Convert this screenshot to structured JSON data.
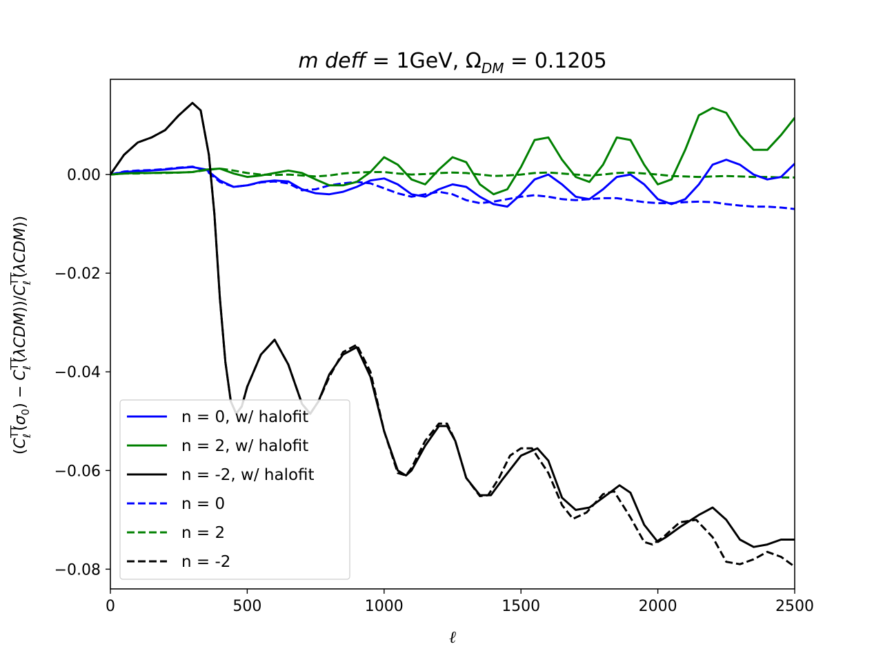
{
  "chart_data": {
    "type": "line",
    "title": "m deff = 1GeV, Ω_DM = 0.1205",
    "title_parts": {
      "lhs": "m deff",
      "value1": "1GeV,",
      "omega": "Ω",
      "omega_sub": "DM",
      "value2": "0.1205"
    },
    "xlabel": "ℓ",
    "ylabel": "(C_ℓ^TT(σ0) − C_ℓ^TT(λCDM))/C_ℓ^TT(λCDM))",
    "xlim": [
      0,
      2500
    ],
    "ylim": [
      -0.084,
      0.0193
    ],
    "xticks": [
      0,
      500,
      1000,
      1500,
      2000,
      2500
    ],
    "xtick_labels": [
      "0",
      "500",
      "1000",
      "1500",
      "2000",
      "2500"
    ],
    "yticks": [
      0.0,
      -0.02,
      -0.04,
      -0.06,
      -0.08
    ],
    "ytick_labels": [
      "0.00",
      "−0.02",
      "−0.04",
      "−0.06",
      "−0.08"
    ],
    "legend_position": "lower-left",
    "colors": {
      "blue": "#0000ff",
      "green": "#008000",
      "black": "#000000"
    },
    "series": [
      {
        "name": "n = 0, w/ halofit",
        "color": "#0000ff",
        "dash": "solid",
        "x": [
          0,
          50,
          100,
          150,
          200,
          250,
          300,
          350,
          400,
          450,
          500,
          550,
          600,
          650,
          700,
          750,
          800,
          850,
          900,
          950,
          1000,
          1050,
          1100,
          1150,
          1200,
          1250,
          1300,
          1350,
          1400,
          1450,
          1500,
          1550,
          1600,
          1650,
          1700,
          1750,
          1800,
          1850,
          1900,
          1950,
          2000,
          2050,
          2100,
          2150,
          2200,
          2250,
          2300,
          2350,
          2400,
          2450,
          2500
        ],
        "y": [
          0.0,
          0.0005,
          0.0007,
          0.0008,
          0.001,
          0.0013,
          0.0015,
          0.001,
          -0.0012,
          -0.0025,
          -0.0022,
          -0.0015,
          -0.0012,
          -0.0014,
          -0.003,
          -0.0038,
          -0.004,
          -0.0035,
          -0.0025,
          -0.0012,
          -0.0008,
          -0.002,
          -0.004,
          -0.0045,
          -0.003,
          -0.002,
          -0.0025,
          -0.0045,
          -0.006,
          -0.0065,
          -0.004,
          -0.001,
          0.0,
          -0.002,
          -0.0045,
          -0.005,
          -0.003,
          -0.0005,
          0.0,
          -0.002,
          -0.005,
          -0.006,
          -0.005,
          -0.002,
          0.002,
          0.003,
          0.002,
          0.0,
          -0.001,
          -0.0005,
          0.0022
        ]
      },
      {
        "name": "n = 2, w/ halofit",
        "color": "#008000",
        "dash": "solid",
        "x": [
          0,
          50,
          100,
          150,
          200,
          250,
          300,
          350,
          400,
          450,
          500,
          550,
          600,
          650,
          700,
          750,
          800,
          850,
          900,
          950,
          1000,
          1050,
          1100,
          1150,
          1200,
          1250,
          1300,
          1350,
          1400,
          1450,
          1500,
          1550,
          1600,
          1650,
          1700,
          1750,
          1800,
          1850,
          1900,
          1950,
          2000,
          2050,
          2100,
          2150,
          2200,
          2250,
          2300,
          2350,
          2400,
          2450,
          2500
        ],
        "y": [
          0.0,
          0.0002,
          0.0003,
          0.0003,
          0.0004,
          0.0004,
          0.0005,
          0.001,
          0.0012,
          0.0002,
          -0.0005,
          -0.0002,
          0.0003,
          0.0008,
          0.0003,
          -0.001,
          -0.0022,
          -0.0022,
          -0.0015,
          0.0005,
          0.0035,
          0.002,
          -0.001,
          -0.002,
          0.001,
          0.0035,
          0.0025,
          -0.002,
          -0.004,
          -0.003,
          0.0015,
          0.007,
          0.0075,
          0.003,
          -0.0005,
          -0.0015,
          0.002,
          0.0075,
          0.007,
          0.002,
          -0.002,
          -0.001,
          0.005,
          0.012,
          0.0135,
          0.0125,
          0.008,
          0.005,
          0.005,
          0.008,
          0.0115
        ]
      },
      {
        "name": "n = -2, w/ halofit",
        "color": "#000000",
        "dash": "solid",
        "x": [
          0,
          50,
          100,
          150,
          200,
          250,
          300,
          330,
          360,
          380,
          400,
          420,
          440,
          460,
          480,
          500,
          550,
          600,
          650,
          700,
          730,
          760,
          800,
          850,
          900,
          950,
          1000,
          1050,
          1080,
          1100,
          1150,
          1200,
          1230,
          1260,
          1300,
          1350,
          1390,
          1430,
          1500,
          1560,
          1600,
          1650,
          1700,
          1750,
          1800,
          1860,
          1900,
          1950,
          2000,
          2030,
          2080,
          2150,
          2200,
          2250,
          2300,
          2350,
          2400,
          2450,
          2500
        ],
        "y": [
          0.0,
          0.004,
          0.0065,
          0.0075,
          0.009,
          0.012,
          0.0145,
          0.013,
          0.004,
          -0.008,
          -0.025,
          -0.038,
          -0.046,
          -0.0485,
          -0.047,
          -0.043,
          -0.0365,
          -0.0335,
          -0.0385,
          -0.0465,
          -0.0485,
          -0.046,
          -0.0405,
          -0.0365,
          -0.035,
          -0.041,
          -0.052,
          -0.06,
          -0.061,
          -0.06,
          -0.055,
          -0.051,
          -0.051,
          -0.054,
          -0.0615,
          -0.065,
          -0.065,
          -0.062,
          -0.057,
          -0.0555,
          -0.058,
          -0.0655,
          -0.068,
          -0.0675,
          -0.0655,
          -0.063,
          -0.0645,
          -0.071,
          -0.0745,
          -0.0735,
          -0.0715,
          -0.069,
          -0.0675,
          -0.07,
          -0.074,
          -0.0755,
          -0.075,
          -0.074,
          -0.074
        ]
      },
      {
        "name": "n = 0",
        "color": "#0000ff",
        "dash": "dashed",
        "x": [
          0,
          50,
          100,
          150,
          200,
          250,
          300,
          350,
          400,
          450,
          500,
          550,
          600,
          650,
          700,
          750,
          800,
          850,
          900,
          950,
          1000,
          1050,
          1100,
          1150,
          1200,
          1250,
          1300,
          1350,
          1400,
          1450,
          1500,
          1550,
          1600,
          1650,
          1700,
          1750,
          1800,
          1850,
          1900,
          1950,
          2000,
          2050,
          2100,
          2150,
          2200,
          2250,
          2300,
          2350,
          2400,
          2450,
          2500
        ],
        "y": [
          0.0,
          0.0006,
          0.0008,
          0.0009,
          0.0011,
          0.0014,
          0.0016,
          0.0008,
          -0.0015,
          -0.0025,
          -0.0022,
          -0.0016,
          -0.0014,
          -0.0018,
          -0.0032,
          -0.003,
          -0.0022,
          -0.0018,
          -0.0015,
          -0.0018,
          -0.0028,
          -0.0038,
          -0.0045,
          -0.004,
          -0.0035,
          -0.004,
          -0.0052,
          -0.0058,
          -0.0055,
          -0.005,
          -0.0045,
          -0.0042,
          -0.0045,
          -0.005,
          -0.0052,
          -0.005,
          -0.0048,
          -0.0048,
          -0.0052,
          -0.0056,
          -0.0058,
          -0.0058,
          -0.0056,
          -0.0055,
          -0.0056,
          -0.006,
          -0.0063,
          -0.0065,
          -0.0065,
          -0.0067,
          -0.007
        ]
      },
      {
        "name": "n = 2",
        "color": "#008000",
        "dash": "dashed",
        "x": [
          0,
          50,
          100,
          150,
          200,
          250,
          300,
          350,
          400,
          450,
          500,
          550,
          600,
          650,
          700,
          750,
          800,
          850,
          900,
          950,
          1000,
          1050,
          1100,
          1150,
          1200,
          1250,
          1300,
          1350,
          1400,
          1450,
          1500,
          1550,
          1600,
          1650,
          1700,
          1750,
          1800,
          1850,
          1900,
          1950,
          2000,
          2050,
          2100,
          2150,
          2200,
          2250,
          2300,
          2350,
          2400,
          2450,
          2500
        ],
        "y": [
          0.0,
          0.0002,
          0.0002,
          0.0003,
          0.0003,
          0.0004,
          0.0005,
          0.0009,
          0.0012,
          0.0008,
          0.0003,
          0.0,
          -0.0001,
          0.0,
          -0.0002,
          -0.0004,
          -0.0002,
          0.0002,
          0.0004,
          0.0005,
          0.0005,
          0.0002,
          0.0,
          0.0001,
          0.0003,
          0.0004,
          0.0003,
          0.0,
          -0.0003,
          -0.0002,
          0.0,
          0.0003,
          0.0004,
          0.0002,
          0.0,
          -0.0002,
          0.0,
          0.0003,
          0.0004,
          0.0002,
          0.0,
          -0.0003,
          -0.0004,
          -0.0005,
          -0.0004,
          -0.0003,
          -0.0004,
          -0.0005,
          -0.0005,
          -0.0006,
          -0.0006
        ]
      },
      {
        "name": "n = -2",
        "color": "#000000",
        "dash": "dashed",
        "x": [
          0,
          50,
          100,
          150,
          200,
          250,
          300,
          330,
          360,
          380,
          400,
          420,
          440,
          460,
          480,
          500,
          550,
          600,
          650,
          700,
          730,
          760,
          800,
          850,
          900,
          950,
          1000,
          1050,
          1080,
          1100,
          1150,
          1200,
          1230,
          1260,
          1300,
          1350,
          1380,
          1420,
          1460,
          1500,
          1540,
          1600,
          1650,
          1690,
          1740,
          1800,
          1840,
          1900,
          1950,
          1980,
          2020,
          2080,
          2140,
          2200,
          2250,
          2300,
          2350,
          2400,
          2450,
          2500
        ],
        "y": [
          0.0,
          0.004,
          0.0065,
          0.0075,
          0.009,
          0.012,
          0.0145,
          0.013,
          0.004,
          -0.008,
          -0.025,
          -0.038,
          -0.046,
          -0.0485,
          -0.047,
          -0.043,
          -0.0365,
          -0.0335,
          -0.0385,
          -0.0465,
          -0.0485,
          -0.046,
          -0.041,
          -0.036,
          -0.0345,
          -0.04,
          -0.052,
          -0.0605,
          -0.061,
          -0.0595,
          -0.054,
          -0.0505,
          -0.0505,
          -0.054,
          -0.0615,
          -0.0652,
          -0.065,
          -0.0615,
          -0.057,
          -0.0555,
          -0.0555,
          -0.0605,
          -0.067,
          -0.0698,
          -0.0685,
          -0.0648,
          -0.0642,
          -0.0695,
          -0.0745,
          -0.075,
          -0.0735,
          -0.0705,
          -0.07,
          -0.0735,
          -0.0785,
          -0.079,
          -0.078,
          -0.0765,
          -0.0775,
          -0.0795
        ]
      }
    ]
  }
}
